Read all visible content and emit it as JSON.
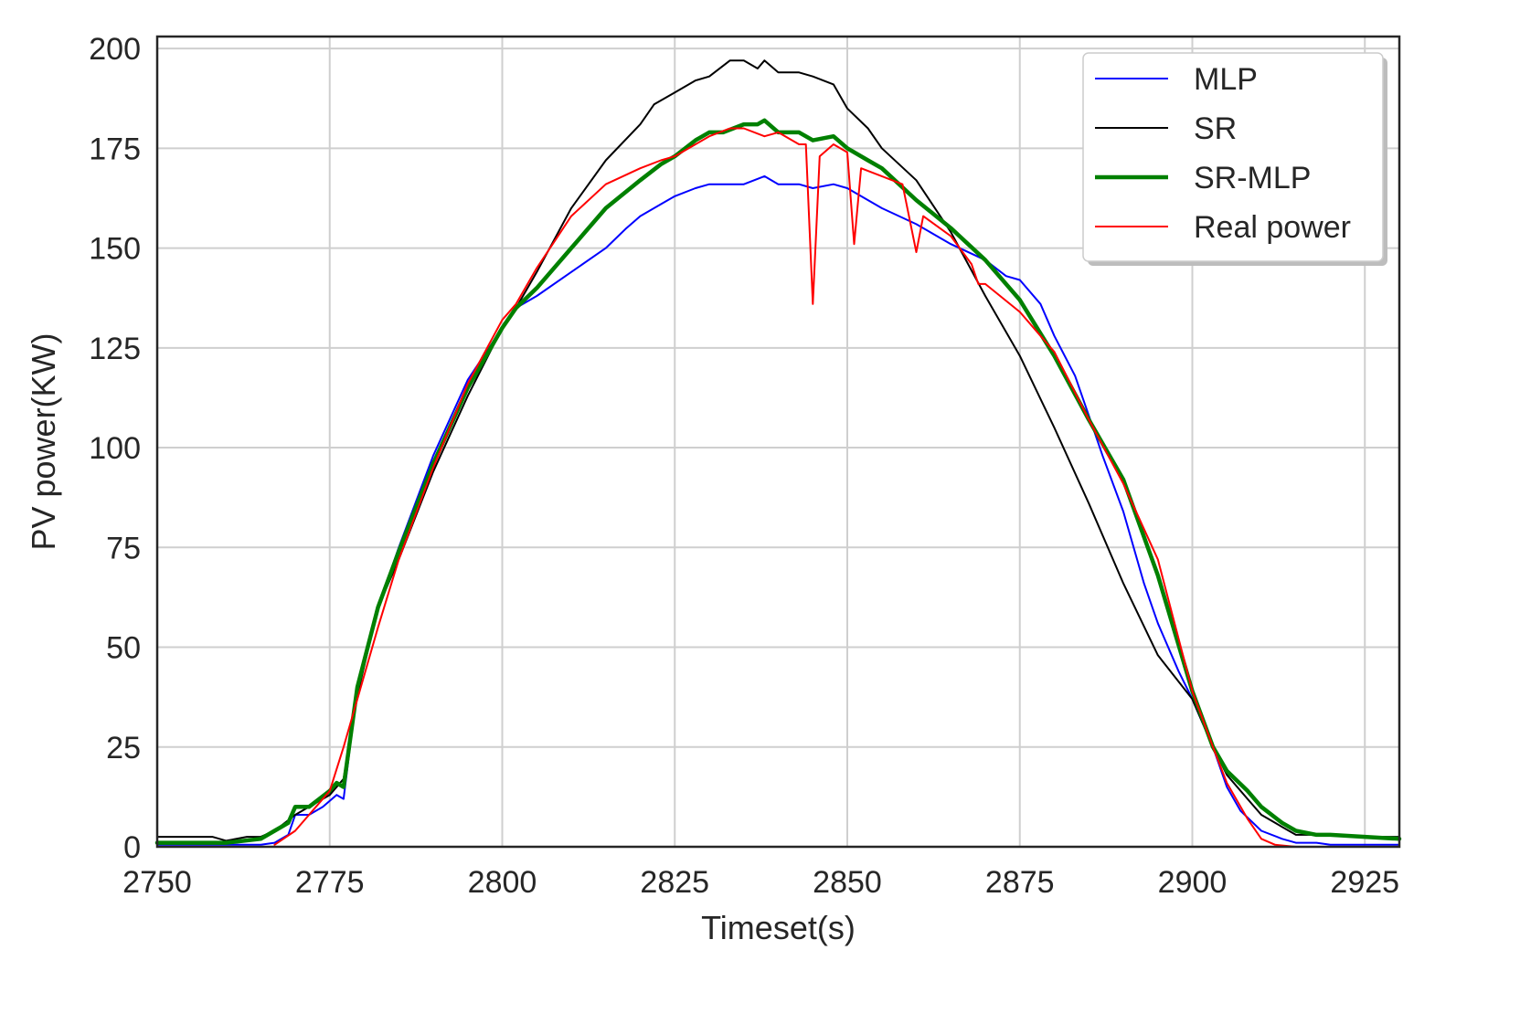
{
  "chart_data": {
    "type": "line",
    "title": "",
    "xlabel": "Timeset(s)",
    "ylabel": "PV power(KW)",
    "xlim": [
      2750,
      2930
    ],
    "ylim": [
      0,
      203
    ],
    "xticks": [
      2750,
      2775,
      2800,
      2825,
      2850,
      2875,
      2900,
      2925
    ],
    "yticks": [
      0,
      25,
      50,
      75,
      100,
      125,
      150,
      175,
      200
    ],
    "grid": true,
    "legend_position": "top-right",
    "series": [
      {
        "name": "MLP",
        "color": "#0000ff",
        "x": [
          2750,
          2755,
          2760,
          2765,
          2767,
          2769,
          2770,
          2772,
          2774,
          2776,
          2777,
          2779,
          2782,
          2785,
          2790,
          2795,
          2800,
          2802,
          2805,
          2810,
          2815,
          2818,
          2820,
          2823,
          2825,
          2828,
          2830,
          2832,
          2835,
          2838,
          2840,
          2843,
          2845,
          2848,
          2850,
          2855,
          2860,
          2865,
          2870,
          2873,
          2875,
          2878,
          2880,
          2883,
          2885,
          2887,
          2890,
          2893,
          2895,
          2898,
          2900,
          2903,
          2905,
          2907,
          2910,
          2913,
          2915,
          2918,
          2920,
          2925,
          2930
        ],
        "y": [
          0.5,
          0.5,
          0.5,
          0.5,
          1,
          3,
          8,
          8,
          10,
          13,
          12,
          40,
          60,
          75,
          98,
          117,
          130,
          135,
          138,
          144,
          150,
          155,
          158,
          161,
          163,
          165,
          166,
          166,
          166,
          168,
          166,
          166,
          165,
          166,
          165,
          160,
          156,
          151,
          147,
          143,
          142,
          136,
          128,
          118,
          108,
          98,
          84,
          66,
          56,
          44,
          37,
          25,
          15,
          9,
          4,
          2,
          1,
          1,
          0.5,
          0.5,
          0.5
        ]
      },
      {
        "name": "SR",
        "color": "#000000",
        "x": [
          2750,
          2755,
          2758,
          2760,
          2763,
          2765,
          2767,
          2770,
          2772,
          2775,
          2777,
          2779,
          2782,
          2785,
          2790,
          2795,
          2800,
          2802,
          2805,
          2810,
          2815,
          2820,
          2822,
          2825,
          2828,
          2830,
          2833,
          2835,
          2837,
          2838,
          2840,
          2843,
          2845,
          2848,
          2850,
          2853,
          2855,
          2860,
          2865,
          2870,
          2875,
          2880,
          2885,
          2890,
          2895,
          2900,
          2903,
          2905,
          2908,
          2910,
          2913,
          2915,
          2918,
          2920,
          2925,
          2930
        ],
        "y": [
          2.5,
          2.5,
          2.5,
          1.5,
          2.5,
          2.5,
          4,
          8,
          10,
          13,
          17,
          38,
          60,
          72,
          94,
          113,
          130,
          135,
          144,
          160,
          172,
          181,
          186,
          189,
          192,
          193,
          197,
          197,
          195,
          197,
          194,
          194,
          193,
          191,
          185,
          180,
          175,
          167,
          154,
          138,
          123,
          105,
          86,
          66,
          48,
          37,
          25,
          18,
          12,
          8,
          5,
          3,
          3,
          3,
          2.5,
          2.5
        ]
      },
      {
        "name": "SR-MLP",
        "color": "#008000",
        "x": [
          2750,
          2755,
          2760,
          2765,
          2767,
          2769,
          2770,
          2772,
          2775,
          2776,
          2777,
          2779,
          2782,
          2785,
          2790,
          2795,
          2800,
          2802,
          2805,
          2810,
          2815,
          2820,
          2823,
          2825,
          2828,
          2830,
          2832,
          2835,
          2837,
          2838,
          2840,
          2843,
          2845,
          2848,
          2850,
          2853,
          2855,
          2860,
          2865,
          2870,
          2875,
          2880,
          2885,
          2890,
          2895,
          2900,
          2903,
          2905,
          2908,
          2910,
          2913,
          2915,
          2918,
          2920,
          2925,
          2930
        ],
        "y": [
          1,
          1,
          1,
          2,
          4,
          6,
          10,
          10,
          14,
          16,
          15,
          40,
          60,
          74,
          96,
          115,
          130,
          135,
          140,
          150,
          160,
          167,
          171,
          173,
          177,
          179,
          179,
          181,
          181,
          182,
          179,
          179,
          177,
          178,
          175,
          172,
          170,
          162,
          155,
          147,
          137,
          123,
          107,
          92,
          68,
          39,
          25,
          19,
          14,
          10,
          6,
          4,
          3,
          3,
          2.5,
          2
        ]
      },
      {
        "name": "Real power",
        "color": "#ff0000",
        "x": [
          2767,
          2770,
          2772,
          2775,
          2777,
          2779,
          2782,
          2785,
          2790,
          2795,
          2800,
          2802,
          2805,
          2810,
          2815,
          2820,
          2823,
          2825,
          2828,
          2830,
          2833,
          2835,
          2838,
          2840,
          2843,
          2844,
          2845,
          2846,
          2848,
          2850,
          2851,
          2852,
          2855,
          2858,
          2860,
          2861,
          2865,
          2868,
          2869,
          2870,
          2875,
          2880,
          2885,
          2890,
          2895,
          2900,
          2903,
          2905,
          2908,
          2910,
          2912,
          2915
        ],
        "y": [
          0.5,
          4,
          8,
          14,
          25,
          37,
          55,
          72,
          95,
          116,
          132,
          136,
          145,
          158,
          166,
          170,
          172,
          173,
          176,
          178,
          180,
          180,
          178,
          179,
          176,
          176,
          136,
          173,
          176,
          174,
          151,
          170,
          168,
          166,
          149,
          158,
          153,
          146,
          141,
          141,
          134,
          124,
          107,
          91,
          72,
          39,
          25,
          16,
          7,
          2,
          0.5,
          0
        ]
      }
    ]
  }
}
